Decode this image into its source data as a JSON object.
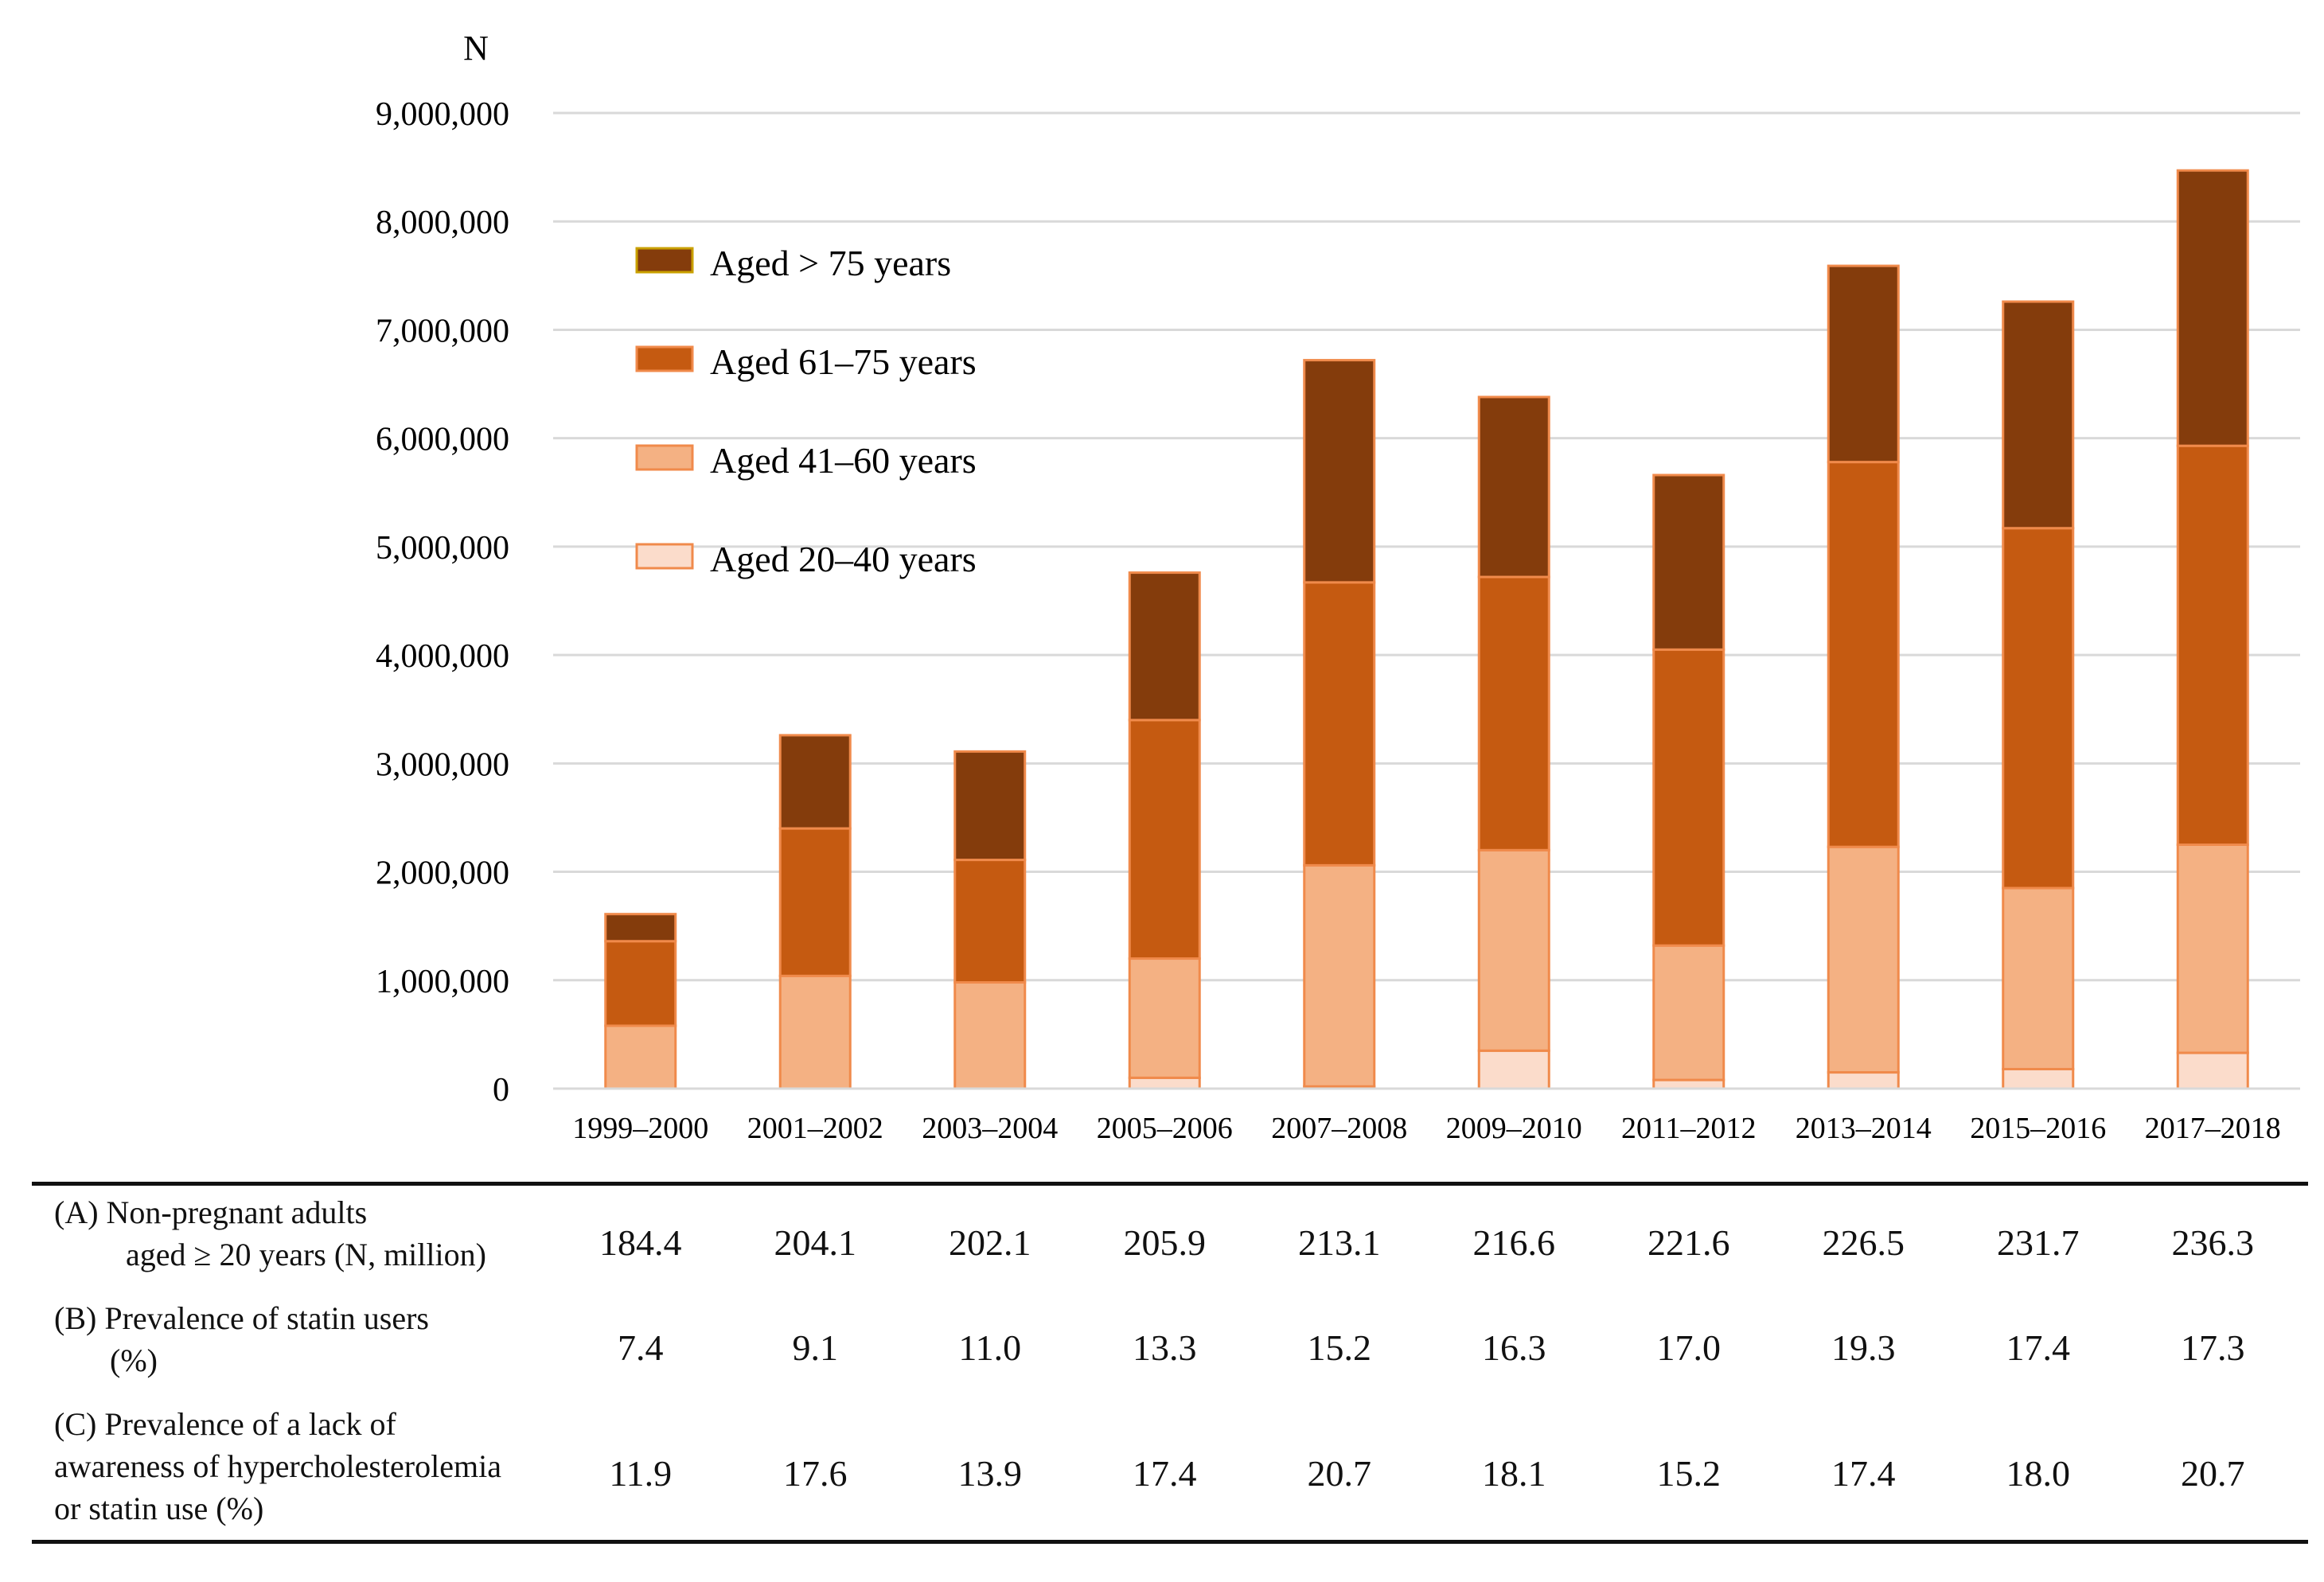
{
  "chart_data": {
    "type": "bar",
    "stacked": true,
    "ylabel": "N",
    "ylim": [
      0,
      9000000
    ],
    "yticks": [
      "0",
      "1,000,000",
      "2,000,000",
      "3,000,000",
      "4,000,000",
      "5,000,000",
      "6,000,000",
      "7,000,000",
      "8,000,000",
      "9,000,000"
    ],
    "ytick_values": [
      0,
      1000000,
      2000000,
      3000000,
      4000000,
      5000000,
      6000000,
      7000000,
      8000000,
      9000000
    ],
    "grid": true,
    "legend_position": "top-left",
    "categories": [
      "1999–2000",
      "2001–2002",
      "2003–2004",
      "2005–2006",
      "2007–2008",
      "2009–2010",
      "2011–2012",
      "2013–2014",
      "2015–2016",
      "2017–2018"
    ],
    "series": [
      {
        "name": "Aged 20–40 years",
        "color": "#fbdccb",
        "stroke": "#f08a4b",
        "values": [
          0,
          0,
          0,
          100000,
          20000,
          350000,
          80000,
          150000,
          180000,
          330000
        ]
      },
      {
        "name": "Aged 41–60 years",
        "color": "#f4b183",
        "stroke": "#f08a4b",
        "values": [
          580000,
          1040000,
          980000,
          1100000,
          2040000,
          1850000,
          1240000,
          2080000,
          1670000,
          1920000
        ]
      },
      {
        "name": "Aged 61–75 years",
        "color": "#c55a11",
        "stroke": "#f08a4b",
        "values": [
          780000,
          1360000,
          1130000,
          2200000,
          2610000,
          2520000,
          2730000,
          3550000,
          3320000,
          3680000
        ]
      },
      {
        "name": "Aged > 75 years",
        "color": "#843c0c",
        "stroke": "#f08a4b",
        "values": [
          250000,
          860000,
          1000000,
          1360000,
          2050000,
          1660000,
          1610000,
          1810000,
          2090000,
          2540000
        ]
      }
    ],
    "legend_order": [
      "Aged > 75 years",
      "Aged 61–75 years",
      "Aged 41–60 years",
      "Aged 20–40 years"
    ]
  },
  "table": {
    "rows": [
      {
        "label_lines": [
          "(A) Non-pregnant adults",
          "aged ≥ 20 years (N, million)"
        ],
        "values": [
          "184.4",
          "204.1",
          "202.1",
          "205.9",
          "213.1",
          "216.6",
          "221.6",
          "226.5",
          "231.7",
          "236.3"
        ]
      },
      {
        "label_lines": [
          "(B) Prevalence of statin users",
          "(%)"
        ],
        "values": [
          "7.4",
          "9.1",
          "11.0",
          "13.3",
          "15.2",
          "16.3",
          "17.0",
          "19.3",
          "17.4",
          "17.3"
        ]
      },
      {
        "label_lines": [
          "(C) Prevalence of a lack of",
          "awareness of hypercholesterolemia",
          "or statin use (%)"
        ],
        "values": [
          "11.9",
          "17.6",
          "13.9",
          "17.4",
          "20.7",
          "18.1",
          "15.2",
          "17.4",
          "18.0",
          "20.7"
        ]
      }
    ]
  }
}
